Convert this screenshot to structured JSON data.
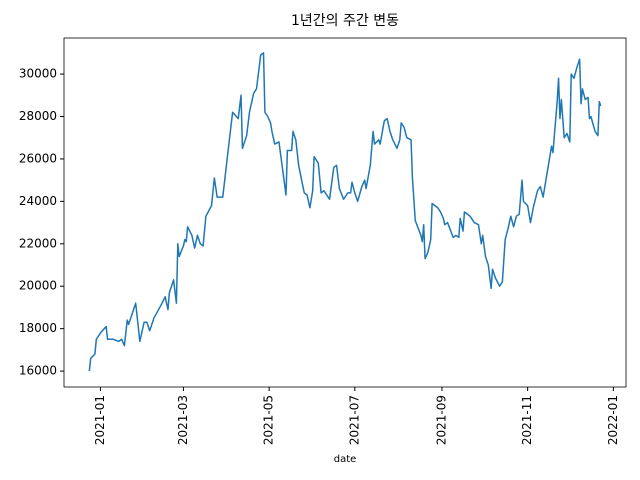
{
  "chart_data": {
    "type": "line",
    "title": "1년간의 주간 변동",
    "x_label": "date",
    "color": "#1f77b4",
    "x": [
      "2020-12-24",
      "2020-12-25",
      "2020-12-28",
      "2020-12-29",
      "2021-01-01",
      "2021-01-05",
      "2021-01-06",
      "2021-01-10",
      "2021-01-14",
      "2021-01-16",
      "2021-01-18",
      "2021-01-20",
      "2021-01-21",
      "2021-01-23",
      "2021-01-26",
      "2021-01-29",
      "2021-02-01",
      "2021-02-03",
      "2021-02-05",
      "2021-02-08",
      "2021-02-13",
      "2021-02-16",
      "2021-02-18",
      "2021-02-19",
      "2021-02-22",
      "2021-02-24",
      "2021-02-25",
      "2021-02-26",
      "2021-03-01",
      "2021-03-02",
      "2021-03-03",
      "2021-03-04",
      "2021-03-07",
      "2021-03-09",
      "2021-03-11",
      "2021-03-13",
      "2021-03-15",
      "2021-03-17",
      "2021-03-21",
      "2021-03-23",
      "2021-03-25",
      "2021-03-29",
      "2021-04-02",
      "2021-04-05",
      "2021-04-09",
      "2021-04-11",
      "2021-04-12",
      "2021-04-15",
      "2021-04-17",
      "2021-04-20",
      "2021-04-22",
      "2021-04-25",
      "2021-04-27",
      "2021-04-28",
      "2021-04-30",
      "2021-05-02",
      "2021-05-03",
      "2021-05-05",
      "2021-05-08",
      "2021-05-11",
      "2021-05-13",
      "2021-05-14",
      "2021-05-17",
      "2021-05-18",
      "2021-05-20",
      "2021-05-22",
      "2021-05-26",
      "2021-05-28",
      "2021-05-30",
      "2021-06-01",
      "2021-06-02",
      "2021-06-05",
      "2021-06-07",
      "2021-06-09",
      "2021-06-13",
      "2021-06-16",
      "2021-06-18",
      "2021-06-20",
      "2021-06-23",
      "2021-06-26",
      "2021-06-28",
      "2021-06-29",
      "2021-07-01",
      "2021-07-03",
      "2021-07-06",
      "2021-07-08",
      "2021-07-09",
      "2021-07-12",
      "2021-07-14",
      "2021-07-15",
      "2021-07-18",
      "2021-07-19",
      "2021-07-22",
      "2021-07-24",
      "2021-07-26",
      "2021-07-28",
      "2021-07-31",
      "2021-08-02",
      "2021-08-03",
      "2021-08-05",
      "2021-08-07",
      "2021-08-10",
      "2021-08-11",
      "2021-08-13",
      "2021-08-17",
      "2021-08-18",
      "2021-08-19",
      "2021-08-20",
      "2021-08-22",
      "2021-08-24",
      "2021-08-25",
      "2021-08-29",
      "2021-08-31",
      "2021-09-02",
      "2021-09-03",
      "2021-09-05",
      "2021-09-09",
      "2021-09-11",
      "2021-09-13",
      "2021-09-14",
      "2021-09-16",
      "2021-09-17",
      "2021-09-21",
      "2021-09-24",
      "2021-09-27",
      "2021-09-29",
      "2021-09-30",
      "2021-10-02",
      "2021-10-04",
      "2021-10-06",
      "2021-10-07",
      "2021-10-09",
      "2021-10-12",
      "2021-10-14",
      "2021-10-16",
      "2021-10-18",
      "2021-10-20",
      "2021-10-22",
      "2021-10-24",
      "2021-10-26",
      "2021-10-28",
      "2021-10-29",
      "2021-11-01",
      "2021-11-03",
      "2021-11-05",
      "2021-11-08",
      "2021-11-10",
      "2021-11-12",
      "2021-11-14",
      "2021-11-17",
      "2021-11-18",
      "2021-11-19",
      "2021-11-22",
      "2021-11-23",
      "2021-11-24",
      "2021-11-25",
      "2021-11-27",
      "2021-11-29",
      "2021-12-01",
      "2021-12-02",
      "2021-12-04",
      "2021-12-06",
      "2021-12-08",
      "2021-12-09",
      "2021-12-10",
      "2021-12-12",
      "2021-12-14",
      "2021-12-15",
      "2021-12-16",
      "2021-12-19",
      "2021-12-21",
      "2021-12-22",
      "2021-12-23"
    ],
    "values": [
      16000,
      16600,
      16800,
      17500,
      17800,
      18100,
      17500,
      17500,
      17400,
      17500,
      17200,
      18400,
      18200,
      18600,
      19200,
      17400,
      18300,
      18300,
      17900,
      18500,
      19100,
      19500,
      18900,
      19700,
      20300,
      19200,
      22000,
      21400,
      21900,
      22200,
      22100,
      22800,
      22400,
      21800,
      22400,
      22000,
      21900,
      23300,
      23800,
      25100,
      24200,
      24200,
      26500,
      28200,
      27900,
      29000,
      26500,
      27100,
      28200,
      29100,
      29300,
      30900,
      31000,
      28200,
      28000,
      27700,
      27300,
      26700,
      26800,
      25300,
      24300,
      26400,
      26400,
      27300,
      26900,
      25700,
      24400,
      24300,
      23700,
      24500,
      26100,
      25800,
      24400,
      24500,
      24100,
      25600,
      25700,
      24600,
      24100,
      24400,
      24400,
      24900,
      24400,
      24000,
      24700,
      25000,
      24600,
      25700,
      27300,
      26700,
      26900,
      26700,
      27800,
      27900,
      27300,
      26900,
      26500,
      26900,
      27700,
      27500,
      27000,
      26900,
      25100,
      23100,
      22400,
      22100,
      22900,
      21300,
      21600,
      22200,
      23900,
      23700,
      23500,
      23200,
      22900,
      23000,
      22300,
      22400,
      22300,
      23200,
      22600,
      23500,
      23300,
      23000,
      22900,
      22000,
      22400,
      21400,
      21000,
      19900,
      20800,
      20400,
      20000,
      20200,
      22200,
      22700,
      23300,
      22800,
      23300,
      23400,
      25000,
      24000,
      23800,
      23000,
      23700,
      24500,
      24700,
      24200,
      25000,
      26200,
      26600,
      26300,
      28700,
      29800,
      27900,
      28800,
      27000,
      27200,
      26800,
      30000,
      29800,
      30300,
      30700,
      28600,
      29300,
      28800,
      28900,
      27900,
      28000,
      27300,
      27100,
      28700,
      28500
    ],
    "xlim": [
      "2020-12-06",
      "2022-01-10"
    ],
    "xticks": [
      {
        "value": "2021-01-01",
        "label": "2021-01"
      },
      {
        "value": "2021-03-01",
        "label": "2021-03"
      },
      {
        "value": "2021-05-01",
        "label": "2021-05"
      },
      {
        "value": "2021-07-01",
        "label": "2021-07"
      },
      {
        "value": "2021-09-01",
        "label": "2021-09"
      },
      {
        "value": "2021-11-01",
        "label": "2021-11"
      },
      {
        "value": "2022-01-01",
        "label": "2022-01"
      }
    ],
    "ylim": [
      15250,
      31700
    ],
    "yticks": [
      16000,
      18000,
      20000,
      22000,
      24000,
      26000,
      28000,
      30000
    ],
    "grid": false
  }
}
